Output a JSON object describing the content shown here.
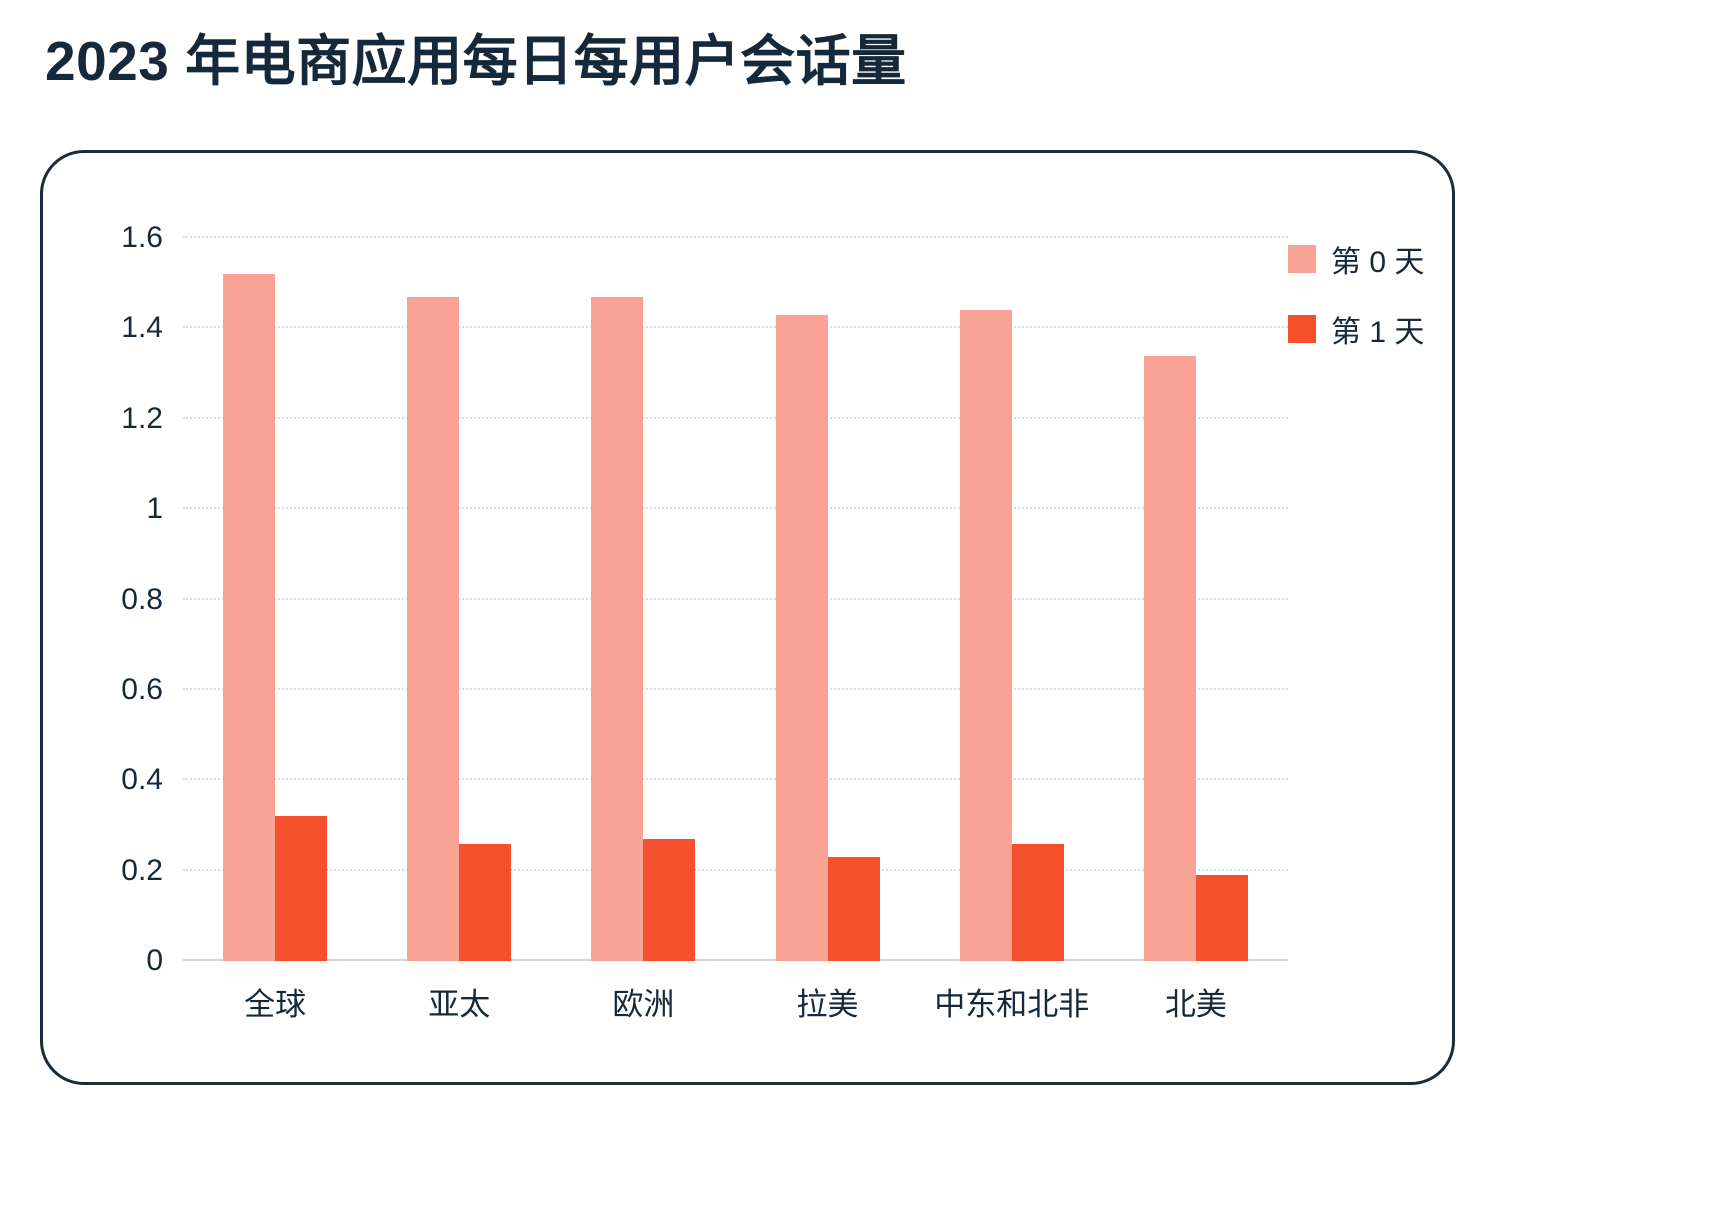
{
  "title": "2023 年电商应用每日每用户会话量",
  "chart_data": {
    "type": "bar",
    "title": "2023 年电商应用每日每用户会话量",
    "categories": [
      "全球",
      "亚太",
      "欧洲",
      "拉美",
      "中东和北非",
      "北美"
    ],
    "series": [
      {
        "name": "第 0 天",
        "color": "#F9A296",
        "values": [
          1.52,
          1.47,
          1.47,
          1.43,
          1.44,
          1.34
        ]
      },
      {
        "name": "第 1 天",
        "color": "#F4502C",
        "values": [
          0.32,
          0.26,
          0.27,
          0.23,
          0.26,
          0.19
        ]
      }
    ],
    "xlabel": "",
    "ylabel": "",
    "ylim": [
      0,
      1.6
    ],
    "ytick_labels": [
      "0",
      "0.2",
      "0.4",
      "0.6",
      "0.8",
      "1",
      "1.2",
      "1.4",
      "1.6"
    ],
    "grid": "horizontal-dotted",
    "legend_position": "top-right"
  },
  "colors": {
    "text": "#15293A",
    "card_border": "#1C2B3A",
    "gridline": "#DBDBDB",
    "baseline": "#D2D6DA",
    "background": "#FFFFFF"
  }
}
